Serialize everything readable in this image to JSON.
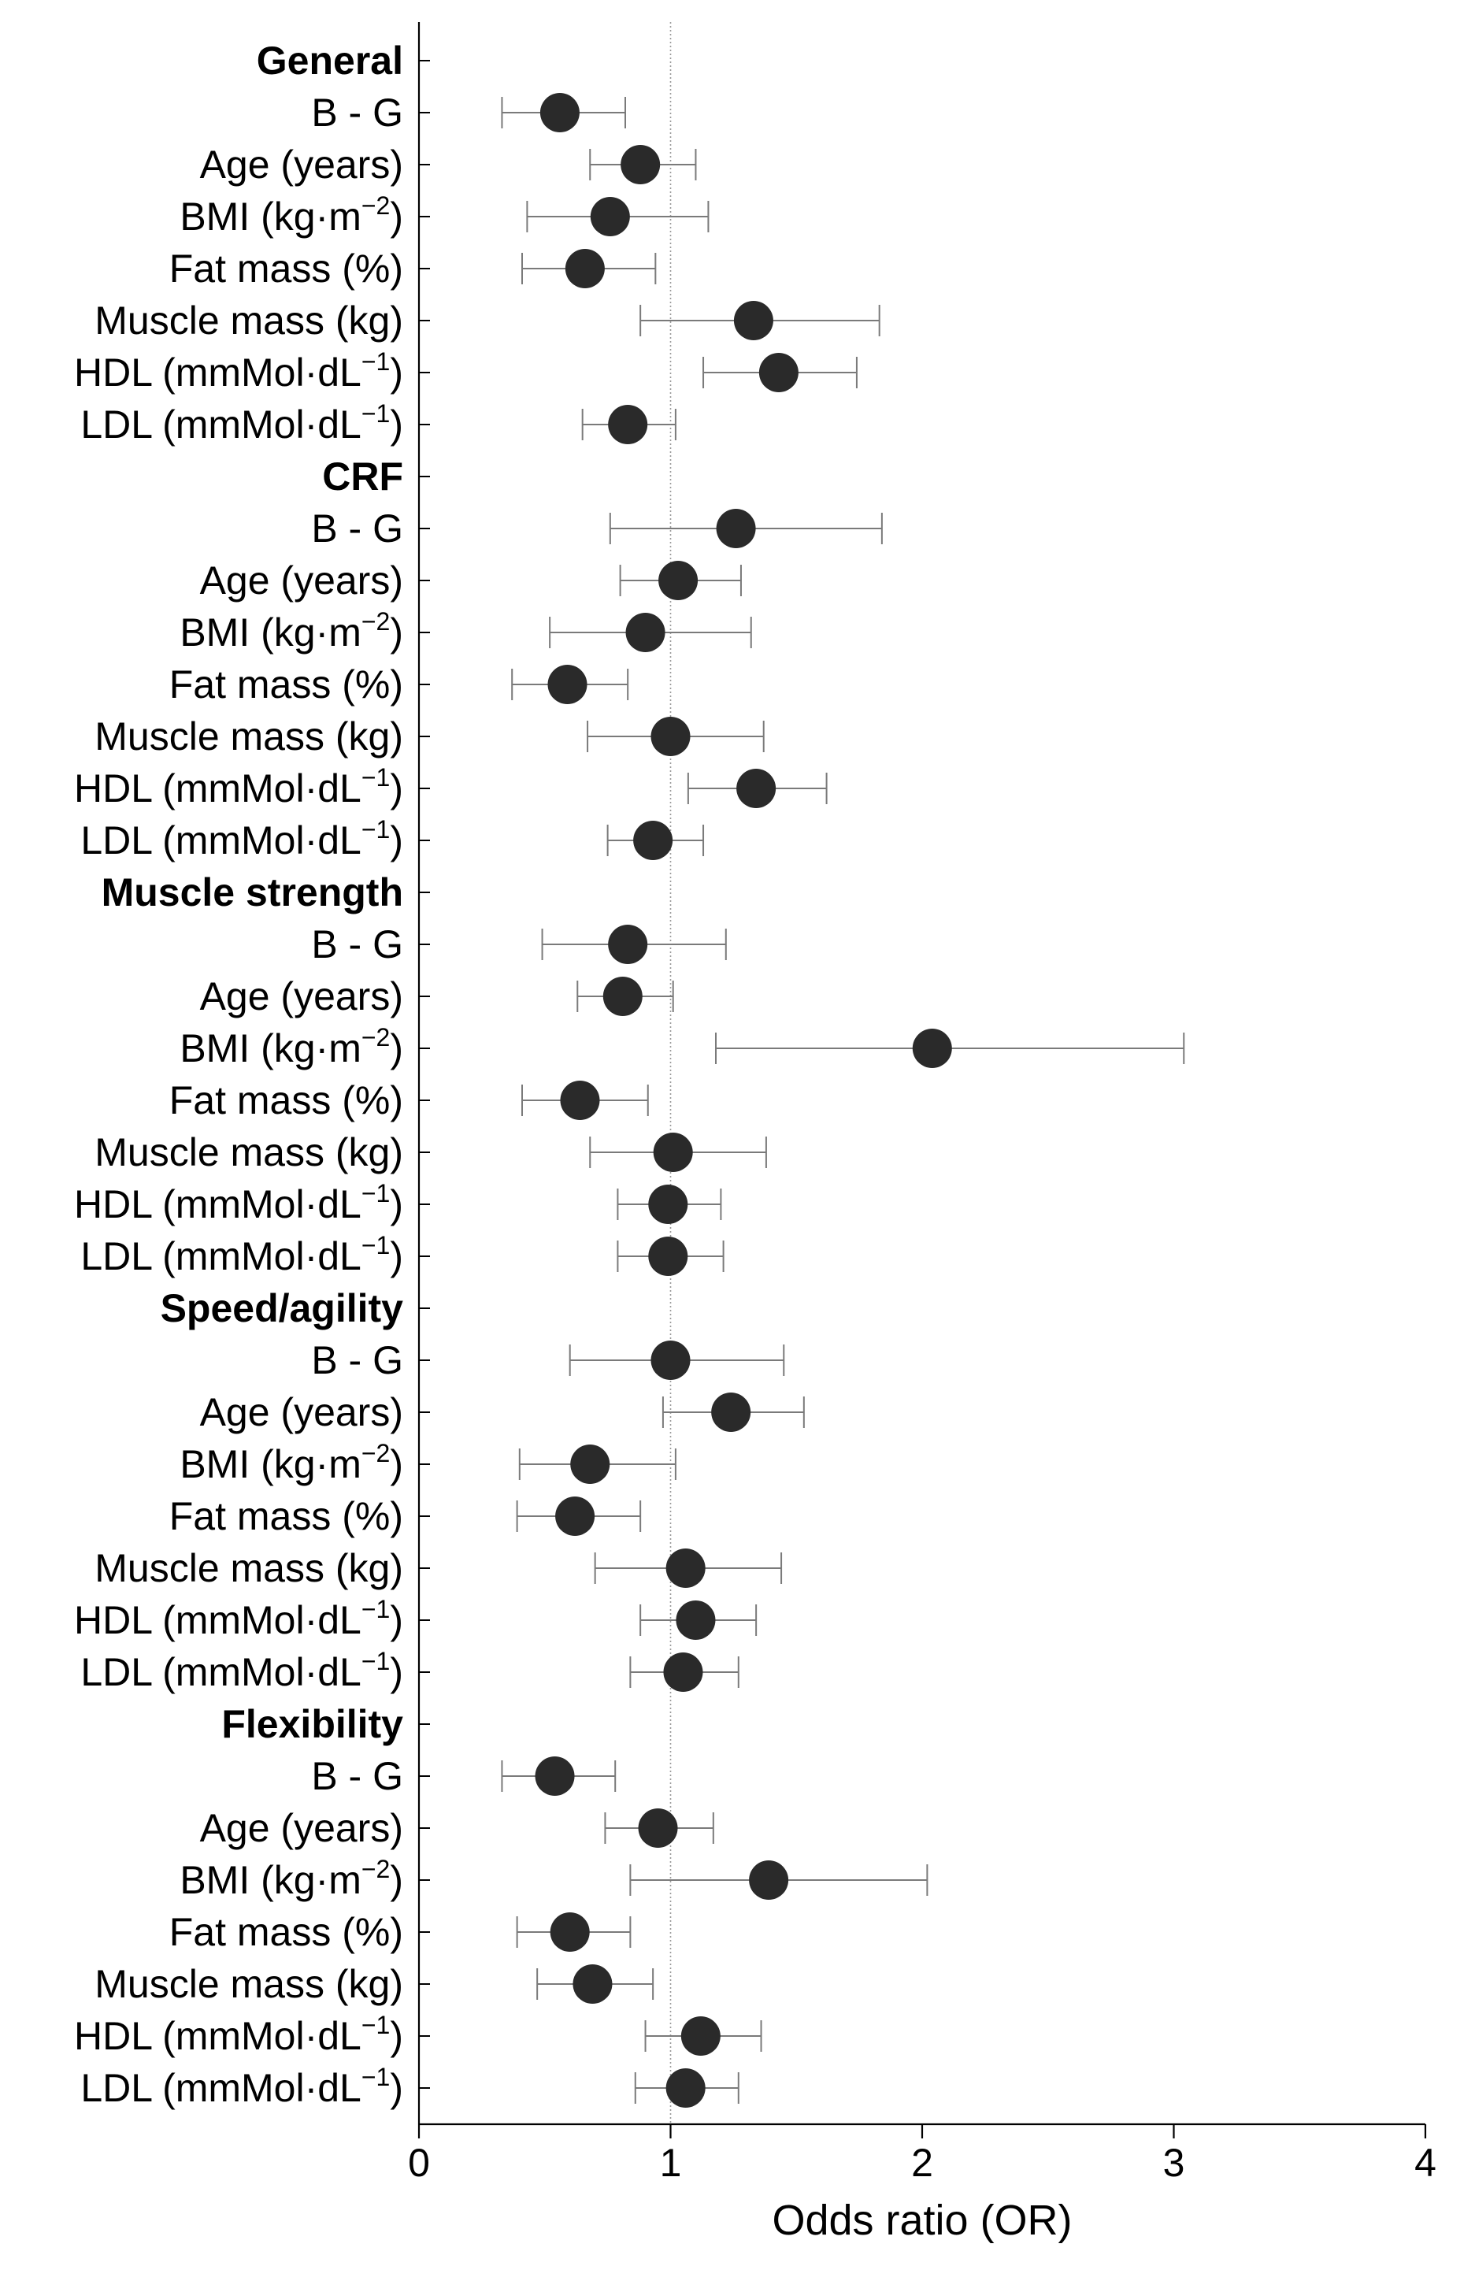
{
  "chart_data": {
    "type": "forest",
    "xlabel": "Odds ratio (OR)",
    "xlim": [
      0,
      4
    ],
    "xticks": [
      0,
      1,
      2,
      3,
      4
    ],
    "reference_line": 1,
    "colors": {
      "marker": "#2a2a2a",
      "ci": "#7a7a7a",
      "axis": "#000000",
      "reference": "#9a9a9a"
    },
    "groups": [
      {
        "name": "General",
        "rows": [
          {
            "label": "B - G",
            "or": 0.56,
            "lo": 0.33,
            "hi": 0.82
          },
          {
            "label": "Age (years)",
            "or": 0.88,
            "lo": 0.68,
            "hi": 1.1
          },
          {
            "label": "BMI (kg·m−2)",
            "label_main": "BMI (kg·m",
            "label_sup": "−2",
            "label_tail": ")",
            "or": 0.76,
            "lo": 0.43,
            "hi": 1.15
          },
          {
            "label": "Fat mass (%)",
            "or": 0.66,
            "lo": 0.41,
            "hi": 0.94
          },
          {
            "label": "Muscle mass (kg)",
            "or": 1.33,
            "lo": 0.88,
            "hi": 1.83
          },
          {
            "label": "HDL (mmMol·dL−1)",
            "label_main": "HDL (mmMol·dL",
            "label_sup": "−1",
            "label_tail": ")",
            "or": 1.43,
            "lo": 1.13,
            "hi": 1.74
          },
          {
            "label": "LDL (mmMol·dL−1)",
            "label_main": "LDL (mmMol·dL",
            "label_sup": "−1",
            "label_tail": ")",
            "or": 0.83,
            "lo": 0.65,
            "hi": 1.02
          }
        ]
      },
      {
        "name": "CRF",
        "rows": [
          {
            "label": "B - G",
            "or": 1.26,
            "lo": 0.76,
            "hi": 1.84
          },
          {
            "label": "Age (years)",
            "or": 1.03,
            "lo": 0.8,
            "hi": 1.28
          },
          {
            "label": "BMI (kg·m−2)",
            "label_main": "BMI (kg·m",
            "label_sup": "−2",
            "label_tail": ")",
            "or": 0.9,
            "lo": 0.52,
            "hi": 1.32
          },
          {
            "label": "Fat mass (%)",
            "or": 0.59,
            "lo": 0.37,
            "hi": 0.83
          },
          {
            "label": "Muscle mass (kg)",
            "or": 1.0,
            "lo": 0.67,
            "hi": 1.37
          },
          {
            "label": "HDL (mmMol·dL−1)",
            "label_main": "HDL (mmMol·dL",
            "label_sup": "−1",
            "label_tail": ")",
            "or": 1.34,
            "lo": 1.07,
            "hi": 1.62
          },
          {
            "label": "LDL (mmMol·dL−1)",
            "label_main": "LDL (mmMol·dL",
            "label_sup": "−1",
            "label_tail": ")",
            "or": 0.93,
            "lo": 0.75,
            "hi": 1.13
          }
        ]
      },
      {
        "name": "Muscle strength",
        "rows": [
          {
            "label": "B - G",
            "or": 0.83,
            "lo": 0.49,
            "hi": 1.22
          },
          {
            "label": "Age (years)",
            "or": 0.81,
            "lo": 0.63,
            "hi": 1.01
          },
          {
            "label": "BMI (kg·m−2)",
            "label_main": "BMI (kg·m",
            "label_sup": "−2",
            "label_tail": ")",
            "or": 2.04,
            "lo": 1.18,
            "hi": 3.04
          },
          {
            "label": "Fat mass (%)",
            "or": 0.64,
            "lo": 0.41,
            "hi": 0.91
          },
          {
            "label": "Muscle mass (kg)",
            "or": 1.01,
            "lo": 0.68,
            "hi": 1.38
          },
          {
            "label": "HDL (mmMol·dL−1)",
            "label_main": "HDL (mmMol·dL",
            "label_sup": "−1",
            "label_tail": ")",
            "or": 0.99,
            "lo": 0.79,
            "hi": 1.2
          },
          {
            "label": "LDL (mmMol·dL−1)",
            "label_main": "LDL (mmMol·dL",
            "label_sup": "−1",
            "label_tail": ")",
            "or": 0.99,
            "lo": 0.79,
            "hi": 1.21
          }
        ]
      },
      {
        "name": "Speed/agility",
        "rows": [
          {
            "label": "B - G",
            "or": 1.0,
            "lo": 0.6,
            "hi": 1.45
          },
          {
            "label": "Age (years)",
            "or": 1.24,
            "lo": 0.97,
            "hi": 1.53
          },
          {
            "label": "BMI (kg·m−2)",
            "label_main": "BMI (kg·m",
            "label_sup": "−2",
            "label_tail": ")",
            "or": 0.68,
            "lo": 0.4,
            "hi": 1.02
          },
          {
            "label": "Fat mass (%)",
            "or": 0.62,
            "lo": 0.39,
            "hi": 0.88
          },
          {
            "label": "Muscle mass (kg)",
            "or": 1.06,
            "lo": 0.7,
            "hi": 1.44
          },
          {
            "label": "HDL (mmMol·dL−1)",
            "label_main": "HDL (mmMol·dL",
            "label_sup": "−1",
            "label_tail": ")",
            "or": 1.1,
            "lo": 0.88,
            "hi": 1.34
          },
          {
            "label": "LDL (mmMol·dL−1)",
            "label_main": "LDL (mmMol·dL",
            "label_sup": "−1",
            "label_tail": ")",
            "or": 1.05,
            "lo": 0.84,
            "hi": 1.27
          }
        ]
      },
      {
        "name": "Flexibility",
        "rows": [
          {
            "label": "B - G",
            "or": 0.54,
            "lo": 0.33,
            "hi": 0.78
          },
          {
            "label": "Age (years)",
            "or": 0.95,
            "lo": 0.74,
            "hi": 1.17
          },
          {
            "label": "BMI (kg·m−2)",
            "label_main": "BMI (kg·m",
            "label_sup": "−2",
            "label_tail": ")",
            "or": 1.39,
            "lo": 0.84,
            "hi": 2.02
          },
          {
            "label": "Fat mass (%)",
            "or": 0.6,
            "lo": 0.39,
            "hi": 0.84
          },
          {
            "label": "Muscle mass (kg)",
            "or": 0.69,
            "lo": 0.47,
            "hi": 0.93
          },
          {
            "label": "HDL (mmMol·dL−1)",
            "label_main": "HDL (mmMol·dL",
            "label_sup": "−1",
            "label_tail": ")",
            "or": 1.12,
            "lo": 0.9,
            "hi": 1.36
          },
          {
            "label": "LDL (mmMol·dL−1)",
            "label_main": "LDL (mmMol·dL",
            "label_sup": "−1",
            "label_tail": ")",
            "or": 1.06,
            "lo": 0.86,
            "hi": 1.27
          }
        ]
      }
    ]
  }
}
